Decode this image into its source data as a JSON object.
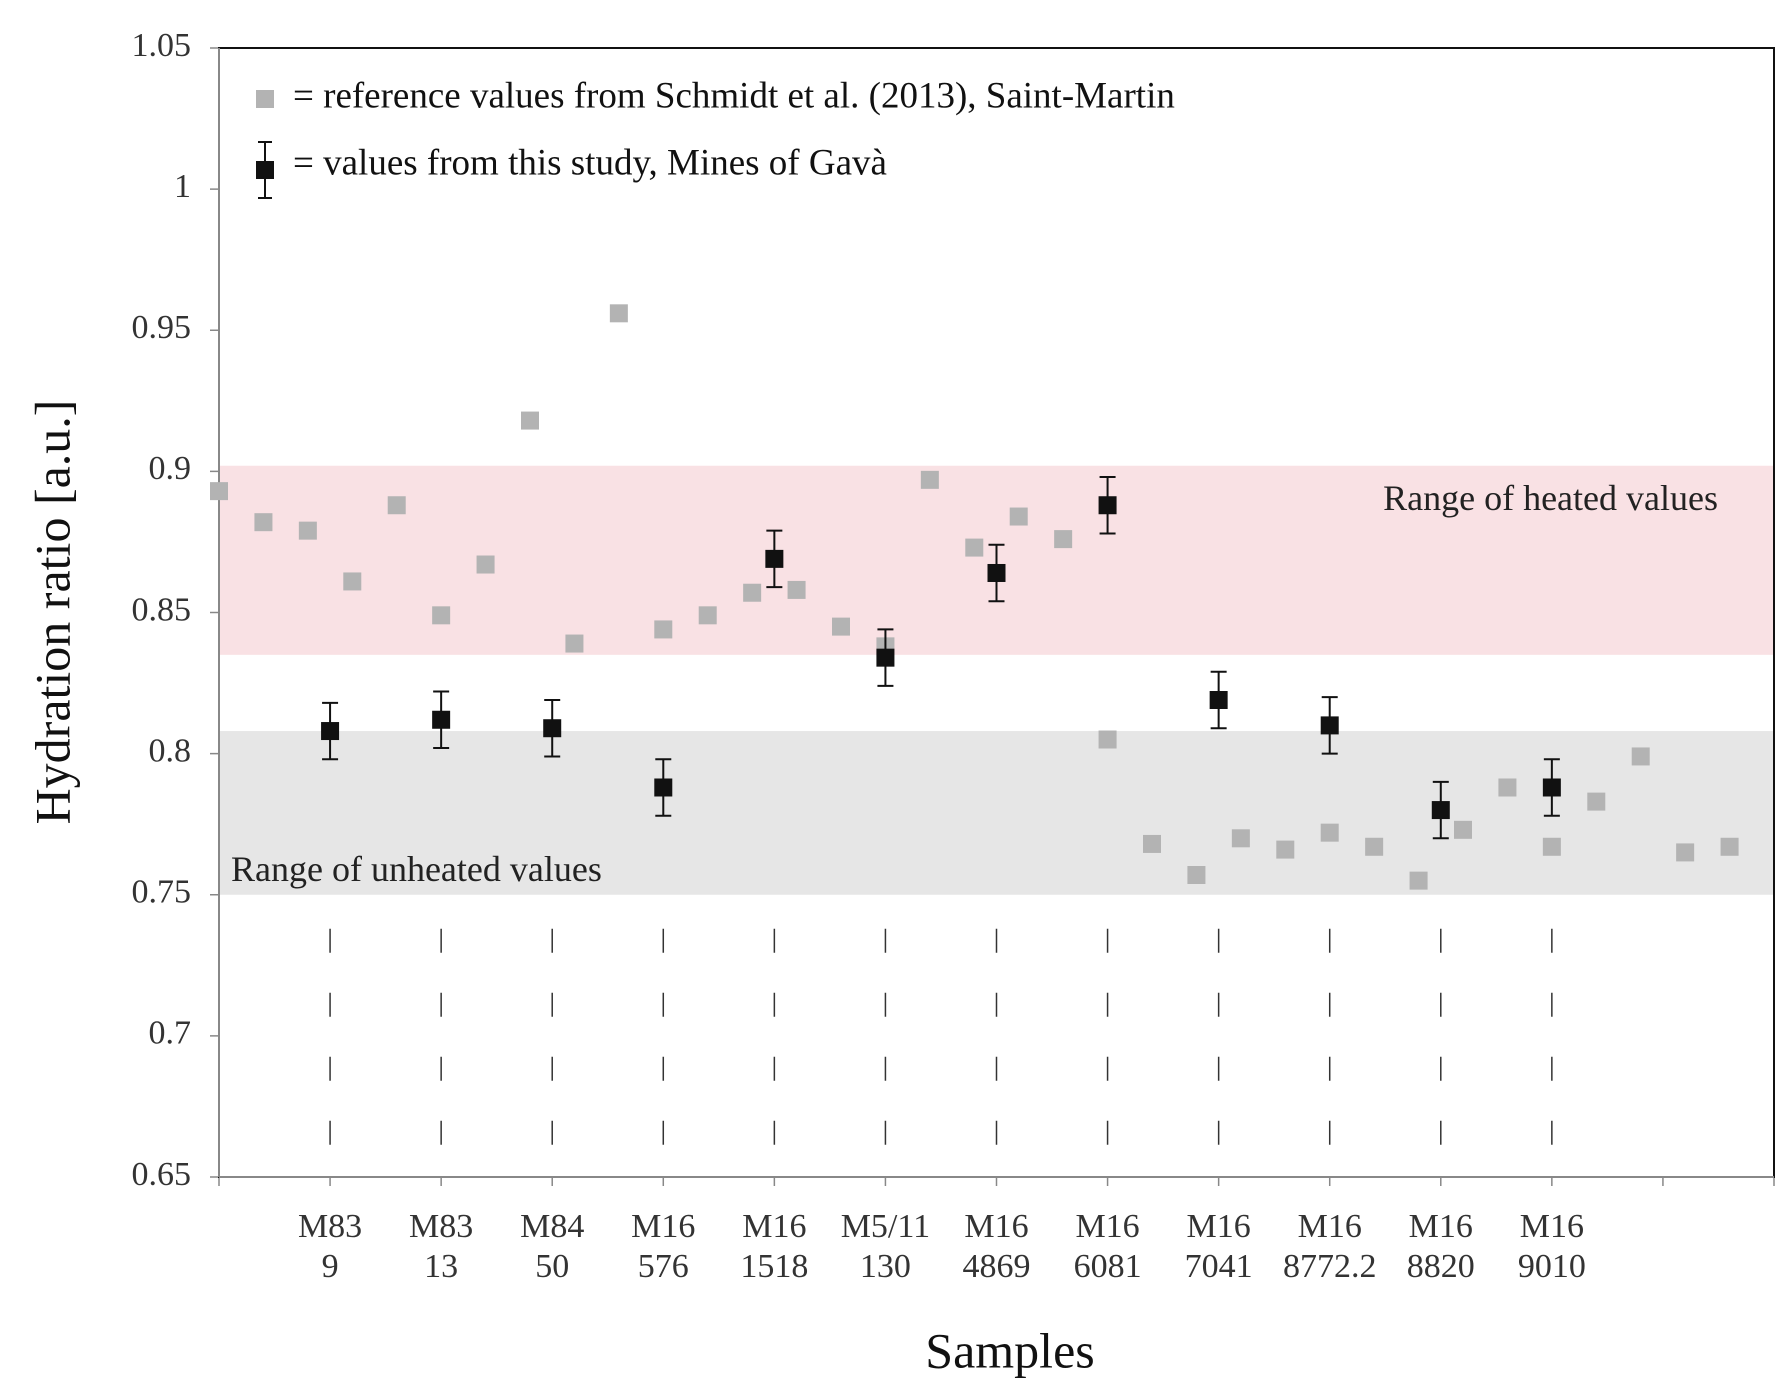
{
  "chart_data": {
    "type": "scatter",
    "x_label": "Samples",
    "y_label": "Hydration ratio [a.u.]",
    "categories": [
      [
        "M83",
        "9"
      ],
      [
        "M83",
        "13"
      ],
      [
        "M84",
        "50"
      ],
      [
        "M16",
        "576"
      ],
      [
        "M16",
        "1518"
      ],
      [
        "M5/11",
        "130"
      ],
      [
        "M16",
        "4869"
      ],
      [
        "M16",
        "6081"
      ],
      [
        "M16",
        "7041"
      ],
      [
        "M16",
        "8772.2"
      ],
      [
        "M16",
        "8820"
      ],
      [
        "M16",
        "9010"
      ]
    ],
    "xlim": [
      0,
      14
    ],
    "xticks": [
      0,
      1,
      2,
      3,
      4,
      5,
      6,
      7,
      8,
      9,
      10,
      11,
      12,
      13,
      14
    ],
    "ylim": [
      0.65,
      1.05
    ],
    "yticks": [
      0.65,
      0.7,
      0.75,
      0.8,
      0.85,
      0.9,
      0.95,
      1,
      1.05
    ],
    "bands": [
      {
        "label": "Range of heated values",
        "range": [
          0.835,
          0.902
        ],
        "color": "#f9e1e4"
      },
      {
        "label": "Range of unheated values",
        "range": [
          0.75,
          0.808
        ],
        "color": "#e6e6e6"
      }
    ],
    "series": [
      {
        "name": "= reference values from Schmidt et al. (2013), Saint-Martin",
        "color": "#b3b3b3",
        "x": [
          0,
          0.4,
          0.8,
          1.2,
          1.6,
          2,
          2.4,
          2.8,
          3.2,
          3.6,
          4,
          4.4,
          4.8,
          5.2,
          5.6,
          6,
          6.4,
          6.8,
          7.2,
          7.6,
          8,
          8.4,
          8.8,
          9.2,
          9.6,
          10,
          10.4,
          10.8,
          11.2,
          11.6,
          12,
          12.4,
          12.8,
          13.2,
          13.6
        ],
        "values": [
          0.893,
          0.882,
          0.879,
          0.861,
          0.888,
          0.849,
          0.867,
          0.918,
          0.839,
          0.956,
          0.844,
          0.849,
          0.857,
          0.858,
          0.845,
          0.838,
          0.897,
          0.873,
          0.884,
          0.876,
          0.805,
          0.768,
          0.757,
          0.77,
          0.766,
          0.772,
          0.767,
          0.755,
          0.773,
          0.788,
          0.767,
          0.783,
          0.799,
          0.765,
          0.767
        ]
      },
      {
        "name": "= values from this study, Mines of Gavà",
        "color": "#111111",
        "x": [
          1,
          2,
          3,
          4,
          5,
          6,
          7,
          8,
          9,
          10,
          11,
          12
        ],
        "values": [
          0.808,
          0.812,
          0.809,
          0.788,
          0.869,
          0.834,
          0.864,
          0.888,
          0.819,
          0.81,
          0.78,
          0.788
        ],
        "error": [
          0.01,
          0.01,
          0.01,
          0.01,
          0.01,
          0.01,
          0.01,
          0.01,
          0.01,
          0.01,
          0.01,
          0.01
        ]
      }
    ]
  }
}
